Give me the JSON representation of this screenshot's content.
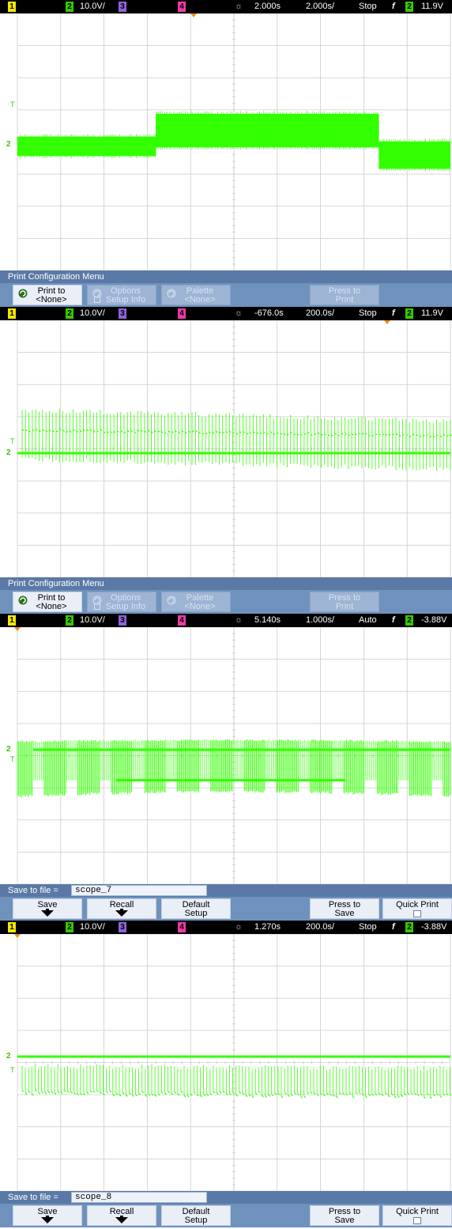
{
  "colors": {
    "trace": "#33ff00",
    "ch1": "#f2e600",
    "ch2": "#37c800",
    "ch3": "#8f62d8",
    "ch4": "#ef3aa8",
    "grid": "#cccccc",
    "menu_bg": "#6f92bd",
    "trigger_marker": "#f08a1c"
  },
  "panels": [
    {
      "status": {
        "ch1": "1",
        "ch2": "2",
        "ch2_scale": "10.0V/",
        "ch3": "3",
        "ch4": "4",
        "time_delay": "2.000s",
        "time_scale": "2.000s/",
        "run_state": "Stop",
        "trig_glyph": "f",
        "trig_source": "2",
        "trig_level": "11.9V"
      },
      "menu": {
        "title": "Print Configuration Menu",
        "type": "print",
        "print_to_line1": "Print to",
        "print_to_line2": "<None>",
        "options_line1": "Options",
        "options_line2": "Setup Info",
        "palette_line1": "Palette",
        "palette_line2": "<None>",
        "press_line1": "Press to",
        "press_line2": "Print"
      },
      "markers": {
        "ground": "2",
        "trigger": "T"
      }
    },
    {
      "status": {
        "ch1": "1",
        "ch2": "2",
        "ch2_scale": "10.0V/",
        "ch3": "3",
        "ch4": "4",
        "time_delay": "-676.0s",
        "time_scale": "200.0s/",
        "run_state": "Stop",
        "trig_glyph": "f",
        "trig_source": "2",
        "trig_level": "11.9V"
      },
      "menu": {
        "title": "Print Configuration Menu",
        "type": "print",
        "print_to_line1": "Print to",
        "print_to_line2": "<None>",
        "options_line1": "Options",
        "options_line2": "Setup Info",
        "palette_line1": "Palette",
        "palette_line2": "<None>",
        "press_line1": "Press to",
        "press_line2": "Print"
      },
      "markers": {
        "ground": "2",
        "trigger": "T"
      }
    },
    {
      "status": {
        "ch1": "1",
        "ch2": "2",
        "ch2_scale": "10.0V/",
        "ch3": "3",
        "ch4": "4",
        "time_delay": "5.140s",
        "time_scale": "1.000s/",
        "run_state": "Auto",
        "trig_glyph": "f",
        "trig_source": "2",
        "trig_level": "-3.88V"
      },
      "menu": {
        "type": "save",
        "file_label": "Save to file =",
        "file_name": "scope_7",
        "save_label": "Save",
        "recall_label": "Recall",
        "default_line1": "Default",
        "default_line2": "Setup",
        "press_line1": "Press to",
        "press_line2": "Save",
        "quick_print_label": "Quick Print"
      },
      "markers": {
        "ground": "2",
        "trigger": "T"
      }
    },
    {
      "status": {
        "ch1": "1",
        "ch2": "2",
        "ch2_scale": "10.0V/",
        "ch3": "3",
        "ch4": "4",
        "time_delay": "1.270s",
        "time_scale": "200.0s/",
        "run_state": "Stop",
        "trig_glyph": "f",
        "trig_source": "2",
        "trig_level": "-3.88V"
      },
      "menu": {
        "type": "save",
        "file_label": "Save to file =",
        "file_name": "scope_8",
        "save_label": "Save",
        "recall_label": "Recall",
        "default_line1": "Default",
        "default_line2": "Setup",
        "press_line1": "Press to",
        "press_line2": "Save",
        "quick_print_label": "Quick Print"
      },
      "markers": {
        "ground": "2",
        "trigger": "T"
      }
    }
  ],
  "waveforms": [
    {
      "type": "bursts",
      "segments": [
        {
          "x_start": 0.0,
          "x_end": 0.32,
          "hi": 0.25,
          "lo": -0.35
        },
        {
          "x_start": 0.32,
          "x_end": 0.835,
          "hi": 0.96,
          "lo": -0.08
        },
        {
          "x_start": 0.835,
          "x_end": 1.0,
          "hi": 0.1,
          "lo": -0.75
        }
      ]
    },
    {
      "type": "spikes",
      "baseline": 0.0,
      "hi_start": 1.35,
      "hi_end": 1.0,
      "lo_start": -0.2,
      "lo_end": -0.5
    },
    {
      "type": "bursts_envelope",
      "hi": 0.25,
      "lo": -1.35,
      "step_level": -0.95
    },
    {
      "type": "spikes",
      "baseline": 0.0,
      "hi_start": -0.3,
      "hi_end": -0.35,
      "lo_start": -1.1,
      "lo_end": -1.2
    }
  ]
}
